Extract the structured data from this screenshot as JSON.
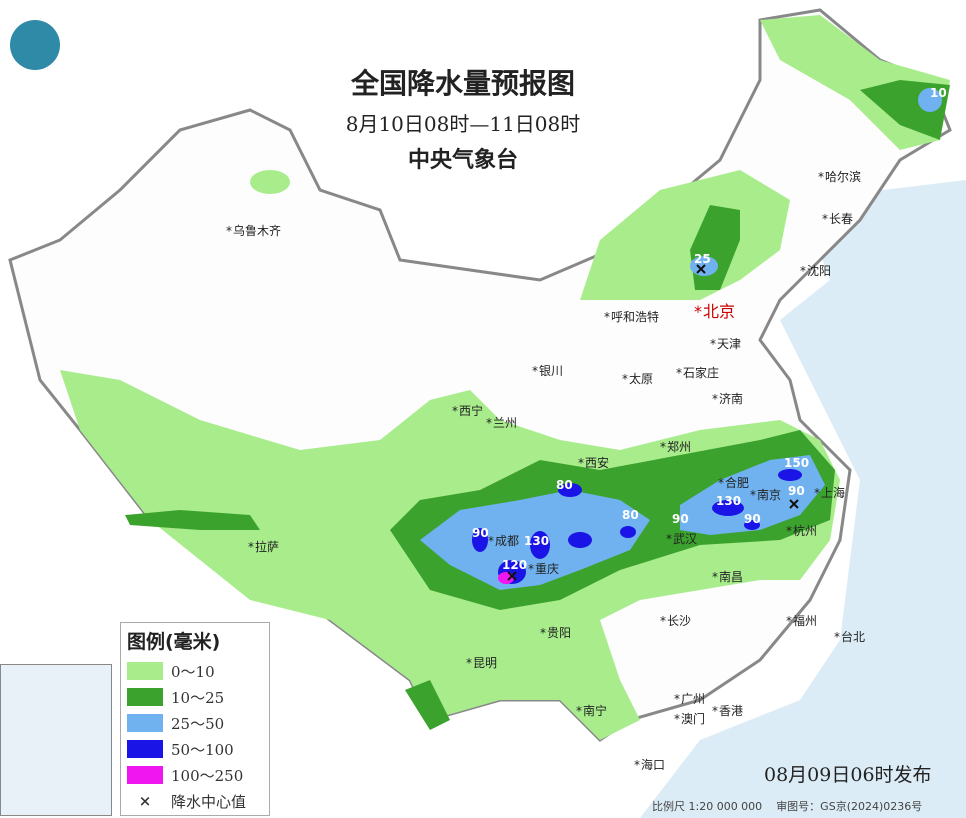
{
  "header": {
    "title": "全国降水量预报图",
    "period": "8月10日08时—11日08时",
    "issuer": "中央气象台"
  },
  "legend": {
    "title": "图例(毫米)",
    "items": [
      {
        "label": "0～10",
        "color": "#a8ec8c"
      },
      {
        "label": "10～25",
        "color": "#3ca22e"
      },
      {
        "label": "25～50",
        "color": "#70b2f0"
      },
      {
        "label": "50～100",
        "color": "#1a14e6"
      },
      {
        "label": "100～250",
        "color": "#f016f0"
      }
    ],
    "center_symbol": "×",
    "center_label": "降水中心值"
  },
  "cities": [
    "乌鲁木齐",
    "哈尔滨",
    "长春",
    "沈阳",
    "呼和浩特",
    "北京",
    "天津",
    "银川",
    "太原",
    "石家庄",
    "济南",
    "西宁",
    "兰州",
    "郑州",
    "西安",
    "合肥",
    "南京",
    "上海",
    "杭州",
    "成都",
    "重庆",
    "武汉",
    "南昌",
    "长沙",
    "贵阳",
    "福州",
    "台北",
    "昆明",
    "南宁",
    "广州",
    "香港",
    "澳门",
    "拉萨",
    "海口"
  ],
  "rain_centers": [
    "10",
    "25",
    "80",
    "80",
    "90",
    "130",
    "120",
    "90",
    "130",
    "90",
    "150",
    "90"
  ],
  "footer": {
    "issued": "08月09日06时发布",
    "scale": "比例尺 1:20 000 000",
    "approval": "审图号：GS京(2024)0236号"
  },
  "icons": {
    "logo": "cma-logo"
  }
}
